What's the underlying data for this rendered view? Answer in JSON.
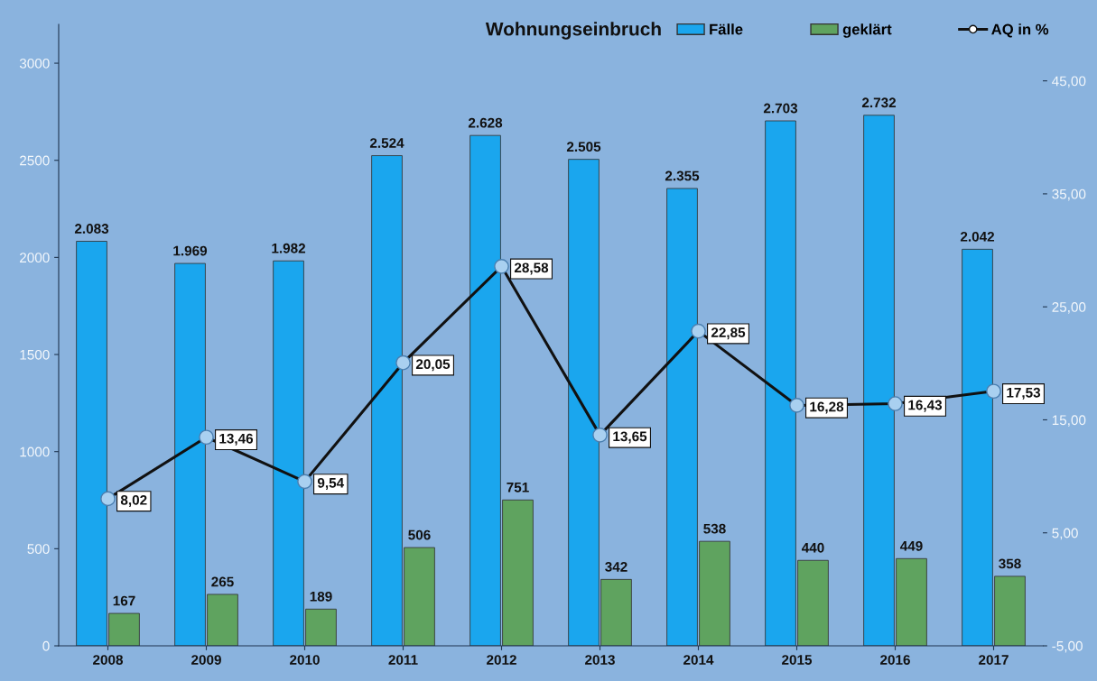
{
  "chart_data": {
    "type": "bar",
    "title": "Wohnungseinbruch",
    "categories": [
      "2008",
      "2009",
      "2010",
      "2011",
      "2012",
      "2013",
      "2014",
      "2015",
      "2016",
      "2017"
    ],
    "series": [
      {
        "name": "Fälle",
        "color": "#1aa6ee",
        "values": [
          2083,
          1969,
          1982,
          2524,
          2628,
          2505,
          2355,
          2703,
          2732,
          2042
        ],
        "value_labels": [
          "2.083",
          "1.969",
          "1.982",
          "2.524",
          "2.628",
          "2.505",
          "2.355",
          "2.703",
          "2.732",
          "2.042"
        ]
      },
      {
        "name": "geklärt",
        "color": "#5fa35f",
        "values": [
          167,
          265,
          189,
          506,
          751,
          342,
          538,
          440,
          449,
          358
        ],
        "value_labels": [
          "167",
          "265",
          "189",
          "506",
          "751",
          "342",
          "538",
          "440",
          "449",
          "358"
        ]
      },
      {
        "name": "AQ in %",
        "type": "line",
        "axis": "y2",
        "color": "#111111",
        "marker": "circle",
        "values": [
          8.02,
          13.46,
          9.54,
          20.05,
          28.58,
          13.65,
          22.85,
          16.28,
          16.43,
          17.53
        ],
        "value_labels": [
          "8,02",
          "13,46",
          "9,54",
          "20,05",
          "28,58",
          "13,65",
          "22,85",
          "16,28",
          "16,43",
          "17,53"
        ]
      }
    ],
    "ylim": [
      0,
      3200
    ],
    "yticks": [
      0,
      500,
      1000,
      1500,
      2000,
      2500,
      3000
    ],
    "y2lim": [
      -5,
      50
    ],
    "y2ticks": [
      {
        "value": -5,
        "label": "-5,00"
      },
      {
        "value": 5,
        "label": "5,00"
      },
      {
        "value": 15,
        "label": "15,00"
      },
      {
        "value": 25,
        "label": "25,00"
      },
      {
        "value": 35,
        "label": "35,00"
      },
      {
        "value": 45,
        "label": "45,00"
      }
    ],
    "grid": false,
    "legend": "top"
  }
}
